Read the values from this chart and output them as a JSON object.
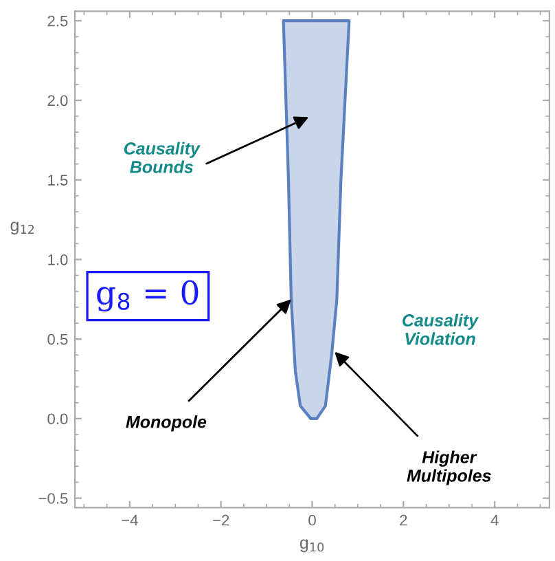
{
  "chart_data": {
    "type": "area",
    "xlabel": "g$_{10}$",
    "ylabel": "g$_{12}$",
    "xlim": [
      -5.2,
      5.2
    ],
    "ylim": [
      -0.56,
      2.56
    ],
    "xticks": [
      {
        "value": -4,
        "label": "−4"
      },
      {
        "value": -2,
        "label": "−2"
      },
      0,
      2,
      4
    ],
    "yticks": [
      {
        "value": -0.5,
        "label": "−0.5"
      },
      {
        "value": 0,
        "label": "0.0"
      },
      0.5,
      {
        "value": 1,
        "label": "1.0"
      },
      1.5,
      {
        "value": 2,
        "label": "2.0"
      },
      2.5
    ],
    "grid": false,
    "series": [
      {
        "color": "#5b7fbf",
        "x": [
          -0.63,
          -0.52,
          -0.46,
          -0.37,
          -0.26,
          -0.03,
          0.1,
          0.29,
          0.43,
          0.54,
          0.63,
          0.81,
          -0.63
        ],
        "values": [
          2.5,
          1.5,
          0.75,
          0.3,
          0.08,
          0.0,
          0.0,
          0.08,
          0.41,
          0.75,
          1.5,
          2.5,
          2.5
        ]
      }
    ],
    "annotations": [
      "Causality\nBounds",
      {
        "text": "Monopole",
        "x": -0.46,
        "y": 0.75
      },
      {
        "text": "Higher\nMultipoles",
        "x": 0.49,
        "y": 0.42
      },
      "Causality\nViolation",
      "g$_{8}$ = 0"
    ]
  }
}
